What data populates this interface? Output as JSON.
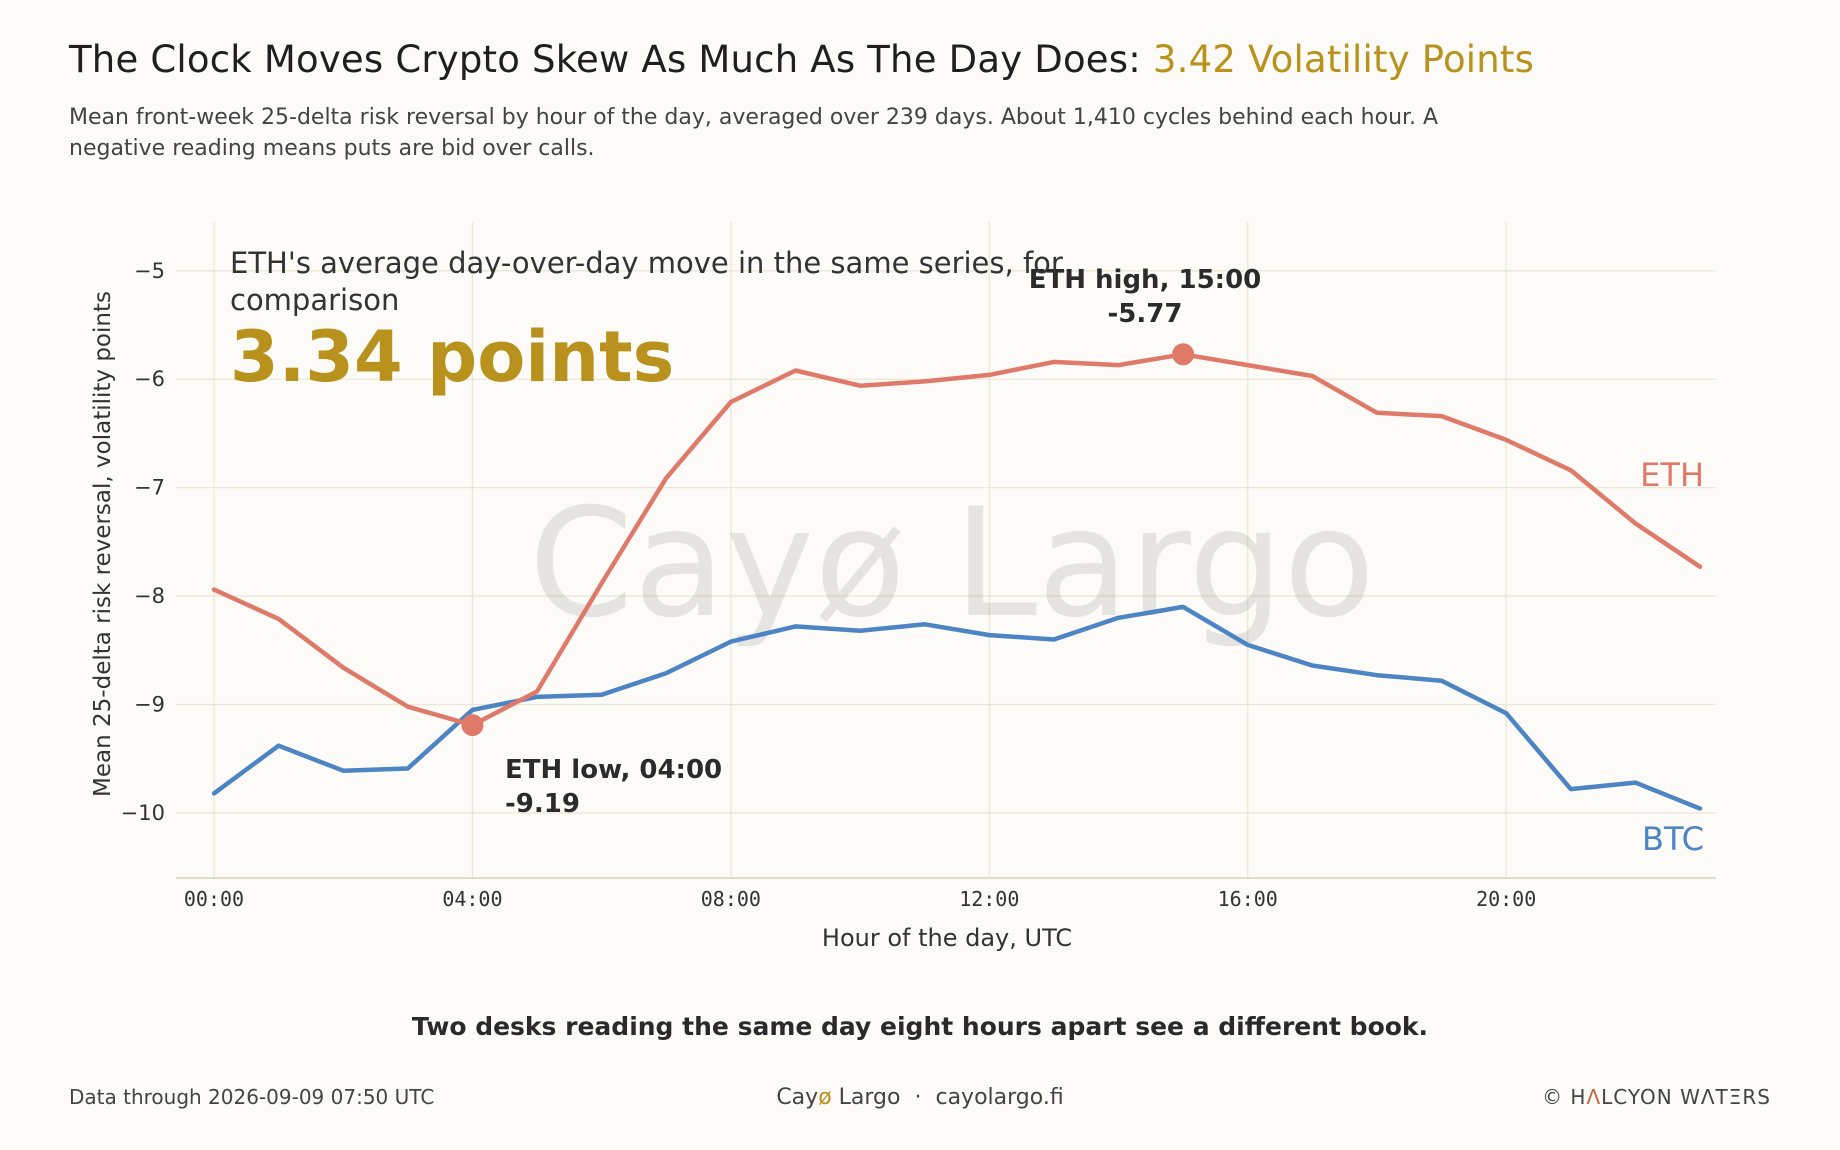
{
  "header": {
    "title_main": "The Clock Moves Crypto Skew As Much As The Day Does:",
    "title_accent": "3.42 Volatility Points",
    "subtitle": "Mean front-week 25-delta risk reversal by hour of the day, averaged over 239 days. About 1,410 cycles behind each hour. A negative reading means puts are bid over calls."
  },
  "watermark": "Cayø Largo",
  "callout": {
    "label": "ETH's average day-over-day move in the same series, for comparison",
    "value": "3.34 points"
  },
  "annotations": {
    "eth_high_title": "ETH high, 15:00",
    "eth_high_value": "-5.77",
    "eth_low_title": "ETH low, 04:00",
    "eth_low_value": "-9.19"
  },
  "takeaway": "Two desks reading the same day eight hours apart see a different book.",
  "footer": {
    "left": "Data through 2026-09-09 07:50 UTC",
    "center_brand_a": "Cay",
    "center_brand_o": "ø",
    "center_brand_b": " Largo",
    "center_sep": "·",
    "center_url": "cayolargo.fi",
    "right_copy": "©",
    "right_h": "H",
    "right_a": "Λ",
    "right_rest": "LCYON WΛTΞRS"
  },
  "colors": {
    "eth": "#df7a6b",
    "btc": "#4d84c3",
    "accent": "#b8921d",
    "grid": "#ebe7d6"
  },
  "chart_data": {
    "type": "line",
    "xlabel": "Hour of the day, UTC",
    "ylabel": "Mean 25-delta risk reversal, volatility points",
    "x": [
      0,
      1,
      2,
      3,
      4,
      5,
      6,
      7,
      8,
      9,
      10,
      11,
      12,
      13,
      14,
      15,
      16,
      17,
      18,
      19,
      20,
      21,
      22,
      23
    ],
    "xlim": [
      0,
      23
    ],
    "ylim": [
      -10.6,
      -4.55
    ],
    "x_ticks": [
      0,
      4,
      8,
      12,
      16,
      20
    ],
    "x_tick_labels": [
      "00:00",
      "04:00",
      "08:00",
      "12:00",
      "16:00",
      "20:00"
    ],
    "y_ticks": [
      -5,
      -6,
      -7,
      -8,
      -9,
      -10
    ],
    "y_tick_labels": [
      "−5",
      "−6",
      "−7",
      "−8",
      "−9",
      "−10"
    ],
    "grid": true,
    "series": [
      {
        "name": "ETH",
        "values": [
          -7.94,
          -8.21,
          -8.66,
          -9.02,
          -9.19,
          -8.88,
          -7.88,
          -6.91,
          -6.21,
          -5.92,
          -6.06,
          -6.02,
          -5.96,
          -5.84,
          -5.87,
          -5.77,
          -5.87,
          -5.97,
          -6.31,
          -6.34,
          -6.56,
          -6.84,
          -7.33,
          -7.73
        ]
      },
      {
        "name": "BTC",
        "values": [
          -9.82,
          -9.38,
          -9.61,
          -9.59,
          -9.05,
          -8.93,
          -8.91,
          -8.71,
          -8.42,
          -8.28,
          -8.32,
          -8.26,
          -8.36,
          -8.4,
          -8.2,
          -8.1,
          -8.45,
          -8.64,
          -8.73,
          -8.78,
          -9.08,
          -9.78,
          -9.72,
          -9.96
        ]
      }
    ],
    "highlights": [
      {
        "series": "ETH",
        "x": 15,
        "y": -5.77
      },
      {
        "series": "ETH",
        "x": 4,
        "y": -9.19
      }
    ]
  }
}
